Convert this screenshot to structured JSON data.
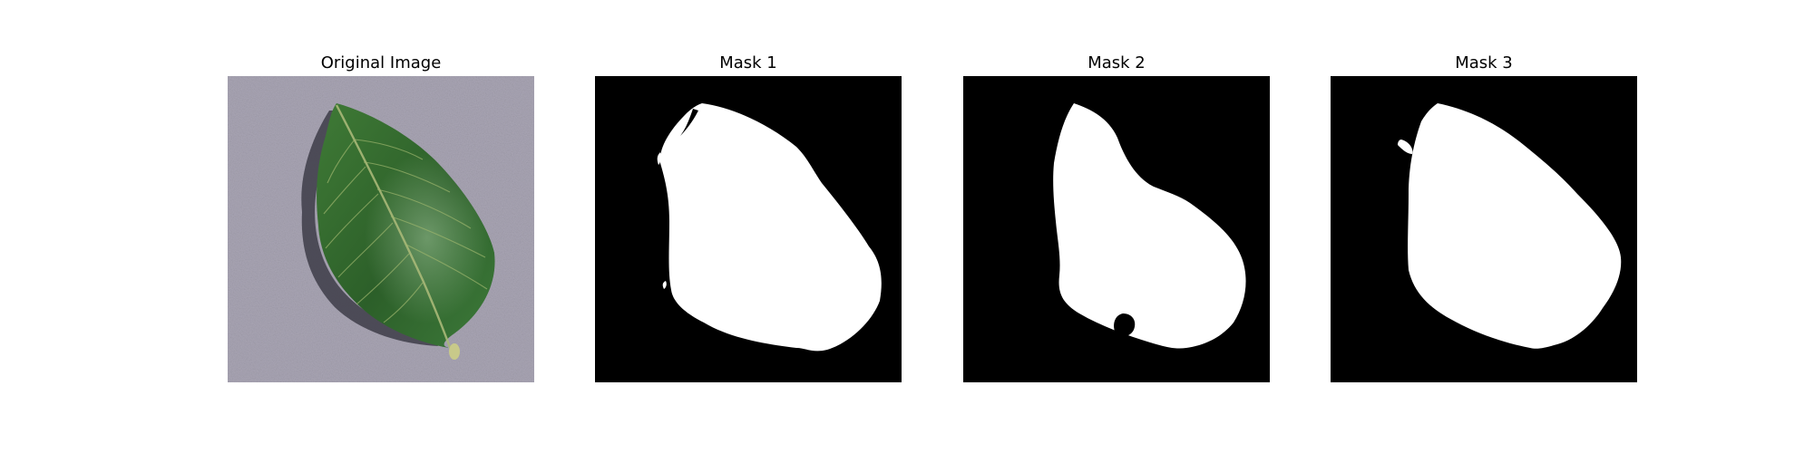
{
  "figure": {
    "panels": [
      {
        "title": "Original Image",
        "kind": "photo",
        "subject": "leaf-photo"
      },
      {
        "title": "Mask 1",
        "kind": "mask",
        "subject": "binary-mask"
      },
      {
        "title": "Mask 2",
        "kind": "mask",
        "subject": "binary-mask"
      },
      {
        "title": "Mask 3",
        "kind": "mask",
        "subject": "binary-mask"
      }
    ],
    "colors": {
      "mask_background": "#000000",
      "mask_foreground": "#ffffff",
      "photo_background": "#a7a3b2",
      "leaf_green": "#2f6b2c",
      "leaf_shadow": "#3b3a45"
    }
  }
}
